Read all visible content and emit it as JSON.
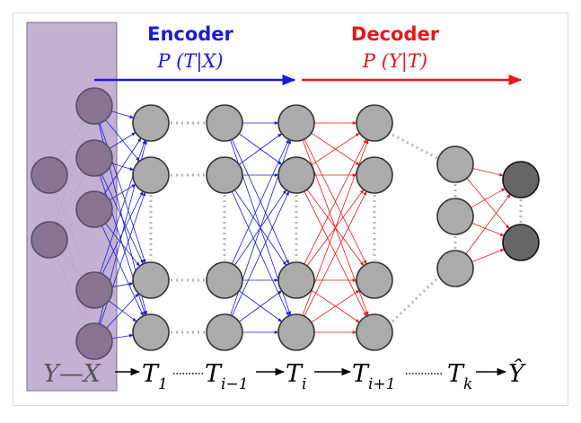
{
  "colors": {
    "encoder": "#1a1adb",
    "decoder": "#e8161b",
    "input_panel": "#c3b1d4",
    "input_node": "#8a7392",
    "hidden_node": "#ababab",
    "output_node": "#666666",
    "connection_gray": "#b6a8c6",
    "dotted": "#b5b5b5"
  },
  "encoder": {
    "title": "Encoder",
    "formula": "P (T|X)"
  },
  "decoder": {
    "title": "Decoder",
    "formula": "P (Y|T)"
  },
  "bottom_labels": {
    "input": "Y—X",
    "t1_main": "T",
    "t1_sub": "1",
    "ti1_main": "T",
    "ti1_sub": "i−1",
    "ti_main": "T",
    "ti_sub": "i",
    "tip1_main": "T",
    "tip1_sub": "i+1",
    "tk_main": "T",
    "tk_sub": "k",
    "output": "Ŷ"
  }
}
